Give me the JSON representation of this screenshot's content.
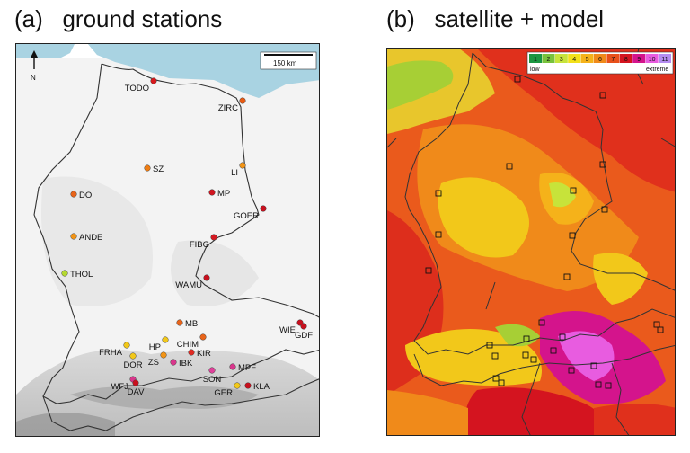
{
  "panel_a": {
    "title": "(a)   ground stations",
    "scale_label": "150 km",
    "north_label": "N",
    "stations": [
      {
        "name": "TODO",
        "color": "#d7191c"
      },
      {
        "name": "ZIRC",
        "color": "#e85b14"
      },
      {
        "name": "SZ",
        "color": "#ef7d14"
      },
      {
        "name": "LI",
        "color": "#f29416"
      },
      {
        "name": "DO",
        "color": "#e8641a"
      },
      {
        "name": "MP",
        "color": "#d0141f"
      },
      {
        "name": "GOER",
        "color": "#c8101e"
      },
      {
        "name": "FIBG",
        "color": "#d41a22"
      },
      {
        "name": "ANDE",
        "color": "#f29416"
      },
      {
        "name": "THOL",
        "color": "#b5d930"
      },
      {
        "name": "WAMU",
        "color": "#c8101e"
      },
      {
        "name": "MB",
        "color": "#e8641a"
      },
      {
        "name": "WIE",
        "color": "#c8101e"
      },
      {
        "name": "GDF",
        "color": "#c8101e"
      },
      {
        "name": "HP",
        "color": "#f2c81a"
      },
      {
        "name": "CHIM",
        "color": "#e8641a"
      },
      {
        "name": "FRHA",
        "color": "#f2c81a"
      },
      {
        "name": "ZS",
        "color": "#f29416"
      },
      {
        "name": "DOR",
        "color": "#f2c81a"
      },
      {
        "name": "IBK",
        "color": "#d9368c"
      },
      {
        "name": "KIR",
        "color": "#e02a22"
      },
      {
        "name": "MPF",
        "color": "#d9368c"
      },
      {
        "name": "SON",
        "color": "#e0409a"
      },
      {
        "name": "GER",
        "color": "#f2c81a"
      },
      {
        "name": "KLA",
        "color": "#c8101e"
      },
      {
        "name": "WFJ",
        "color": "#d9368c"
      },
      {
        "name": "DAV",
        "color": "#c8101e"
      }
    ]
  },
  "panel_b": {
    "title": "(b)   satellite + model",
    "legend": {
      "classes": [
        "1",
        "2",
        "3",
        "4",
        "5",
        "6",
        "7",
        "8",
        "9",
        "10",
        "11"
      ],
      "colors": [
        "#1a9641",
        "#78c23c",
        "#c7e33a",
        "#f2e01a",
        "#f5b21a",
        "#f08a1a",
        "#e8501a",
        "#d4141f",
        "#d4148c",
        "#e85ce0",
        "#b48cf0"
      ],
      "low_label": "low",
      "high_label": "extreme"
    }
  }
}
